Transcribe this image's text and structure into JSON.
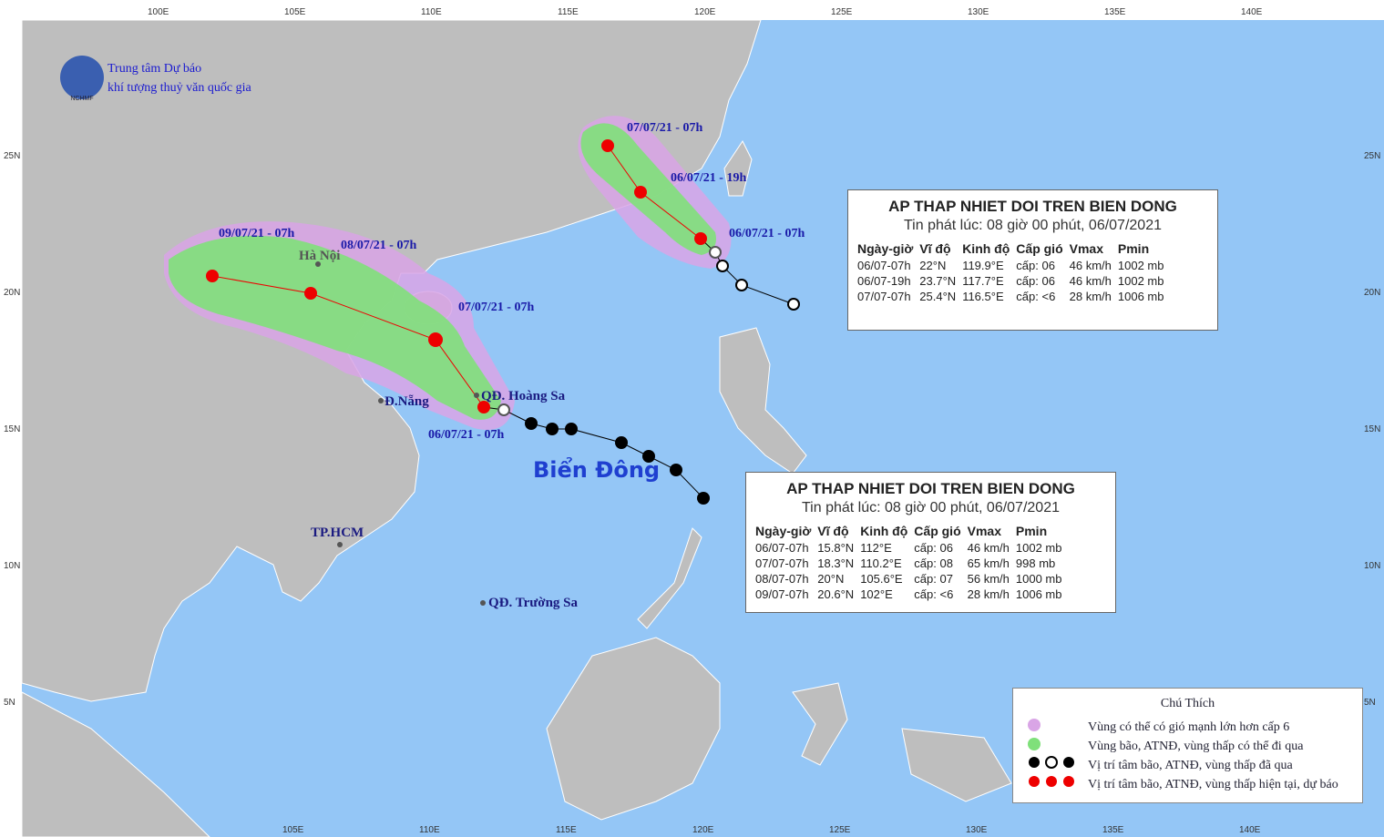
{
  "header": {
    "line1": "Trung tâm Dự báo",
    "line2": "khí tượng thuỷ văn quốc gia",
    "logo": "NCHMF"
  },
  "axes": {
    "lon_top": [
      "100E",
      "105E",
      "110E",
      "115E",
      "120E",
      "125E",
      "130E",
      "135E",
      "140E"
    ],
    "lon_bottom": [
      "105E",
      "110E",
      "115E",
      "120E",
      "125E",
      "130E",
      "135E",
      "140E"
    ],
    "lat_left": [
      "25N",
      "20N",
      "15N",
      "10N",
      "5N"
    ],
    "lat_right": [
      "25N",
      "20N",
      "15N",
      "10N",
      "5N"
    ]
  },
  "places": {
    "hanoi": "Hà Nội",
    "danang": "Đ.Nẵng",
    "hoangsa": "QĐ. Hoàng Sa",
    "hcm": "TP.HCM",
    "truongsa": "QĐ. Trường Sa",
    "sea": "Biển Đông"
  },
  "north_track_labels": [
    "07/07/21 - 07h",
    "06/07/21 - 19h",
    "06/07/21 - 07h"
  ],
  "south_track_labels": [
    "09/07/21 - 07h",
    "08/07/21 - 07h",
    "07/07/21 - 07h",
    "06/07/21 - 07h"
  ],
  "north_box": {
    "title": "AP THAP NHIET DOI TREN BIEN DONG",
    "subtitle": "Tin phát lúc: 08 giờ 00 phút, 06/07/2021",
    "columns": [
      "Ngày-giờ",
      "Vĩ độ",
      "Kinh độ",
      "Cấp gió",
      "Vmax",
      "Pmin"
    ],
    "rows": [
      [
        "06/07-07h",
        "22°N",
        "119.9°E",
        "cấp: 06",
        "46 km/h",
        "1002 mb"
      ],
      [
        "06/07-19h",
        "23.7°N",
        "117.7°E",
        "cấp: 06",
        "46 km/h",
        "1002 mb"
      ],
      [
        "07/07-07h",
        "25.4°N",
        "116.5°E",
        "cấp: <6",
        "28 km/h",
        "1006 mb"
      ]
    ]
  },
  "south_box": {
    "title": "AP THAP NHIET DOI TREN BIEN DONG",
    "subtitle": "Tin phát lúc: 08 giờ 00 phút, 06/07/2021",
    "columns": [
      "Ngày-giờ",
      "Vĩ độ",
      "Kinh độ",
      "Cấp gió",
      "Vmax",
      "Pmin"
    ],
    "rows": [
      [
        "06/07-07h",
        "15.8°N",
        "112°E",
        "cấp: 06",
        "46 km/h",
        "1002 mb"
      ],
      [
        "07/07-07h",
        "18.3°N",
        "110.2°E",
        "cấp: 08",
        "65 km/h",
        "998 mb"
      ],
      [
        "08/07-07h",
        "20°N",
        "105.6°E",
        "cấp: 07",
        "56 km/h",
        "1000 mb"
      ],
      [
        "09/07-07h",
        "20.6°N",
        "102°E",
        "cấp: <6",
        "28 km/h",
        "1006 mb"
      ]
    ]
  },
  "legend": {
    "title": "Chú Thích",
    "items": [
      "Vùng có thể có gió mạnh lớn hơn cấp 6",
      "Vùng bão, ATNĐ, vùng thấp có thể đi qua",
      "Vị trí tâm bão, ATNĐ, vùng thấp đã qua",
      "Vị trí tâm bão, ATNĐ, vùng thấp hiện tại, dự báo"
    ]
  }
}
